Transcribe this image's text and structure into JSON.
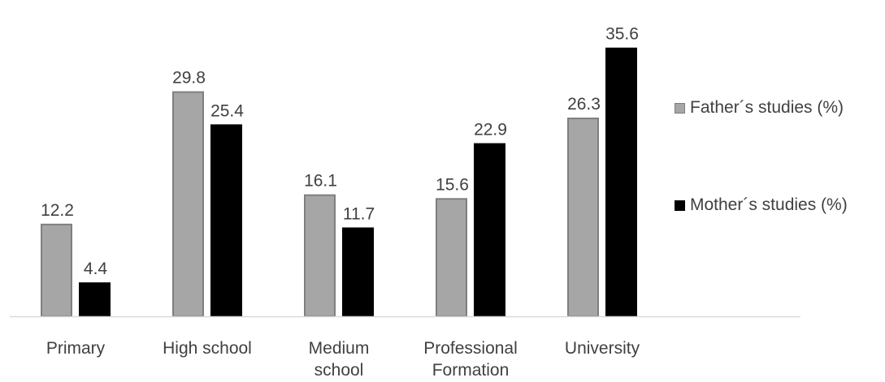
{
  "chart_data": {
    "type": "bar",
    "categories": [
      [
        "Primary"
      ],
      [
        "High school"
      ],
      [
        "Medium",
        "school"
      ],
      [
        "Professional",
        "Formation"
      ],
      [
        "University"
      ]
    ],
    "series": [
      {
        "name": "Father´s studies (%)",
        "values": [
          12.2,
          29.8,
          16.1,
          15.6,
          26.3
        ],
        "labels": [
          "12.2",
          "29.8",
          "16.1",
          "15.6",
          "26.3"
        ],
        "color": "#a6a6a6",
        "stroke": "#7f7f7f"
      },
      {
        "name": "Mother´s studies (%)",
        "values": [
          4.4,
          25.4,
          11.7,
          22.9,
          35.6
        ],
        "labels": [
          "4.4",
          "25.4",
          "11.7",
          "22.9",
          "35.6"
        ],
        "color": "#000000",
        "stroke": "#000000"
      }
    ],
    "ylim": [
      0,
      36
    ],
    "grid": false,
    "legend_position": "right",
    "axis_color": "#d9d9d9",
    "text_color": "#404040"
  }
}
